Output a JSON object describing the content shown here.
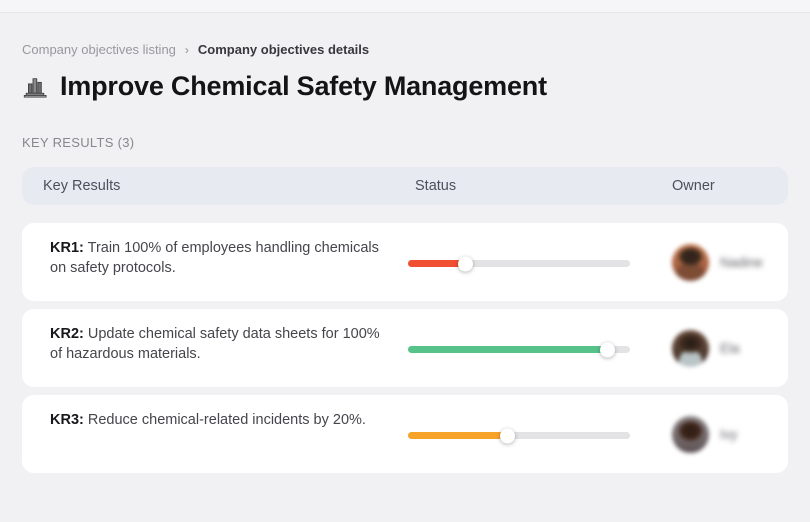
{
  "breadcrumb": {
    "separator": "›",
    "items": [
      {
        "label": "Company objectives listing"
      },
      {
        "label": "Company objectives details"
      }
    ]
  },
  "page": {
    "title": "Improve Chemical Safety Management",
    "title_icon": "building-bars-icon",
    "section_label": "KEY RESULTS (3)"
  },
  "table": {
    "headers": {
      "key_results": "Key Results",
      "status": "Status",
      "owner": "Owner"
    },
    "rows": [
      {
        "kr_label": "KR1:",
        "kr_text": "Train 100% of employees handling chemicals on safety protocols.",
        "progress_percent": 26,
        "progress_color": "#f04f31",
        "owner_name": "Nadine"
      },
      {
        "kr_label": "KR2:",
        "kr_text": "Update chemical safety data sheets for 100% of hazardous materials.",
        "progress_percent": 90,
        "progress_color": "#57c28a",
        "owner_name": "Ela"
      },
      {
        "kr_label": "KR3:",
        "kr_text": "Reduce chemical-related incidents by 20%.",
        "progress_percent": 45,
        "progress_color": "#f7a32a",
        "owner_name": "Ivy"
      }
    ]
  },
  "colors": {
    "page_background": "#f1f1f3",
    "header_background": "#e7eaf1",
    "card_background": "#ffffff",
    "track_background": "#e3e3e5",
    "progress_red": "#f04f31",
    "progress_green": "#57c28a",
    "progress_orange": "#f7a32a"
  }
}
